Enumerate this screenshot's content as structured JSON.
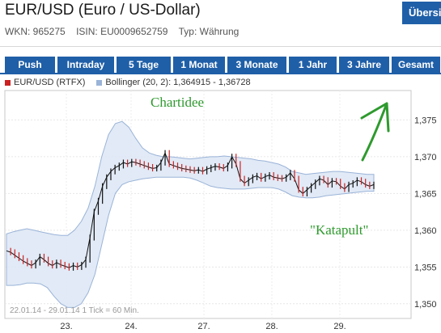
{
  "header": {
    "title": "EUR/USD (Euro / US-Dollar)",
    "overview_button": "Übersicht",
    "wkn": "WKN: 965275",
    "isin": "ISIN: EU0009652759",
    "type": "Typ: Währung"
  },
  "tabs": [
    {
      "label": "Push",
      "active": false
    },
    {
      "label": "Intraday",
      "active": false
    },
    {
      "label": "5 Tage",
      "active": true
    },
    {
      "label": "1 Monat",
      "active": false
    },
    {
      "label": "3 Monate",
      "active": false
    },
    {
      "label": "1 Jahr",
      "active": false
    },
    {
      "label": "3 Jahre",
      "active": false
    },
    {
      "label": "Gesamt",
      "active": false
    }
  ],
  "legend": {
    "series": "EUR/USD (RTFX)",
    "series_color": "#cc2222",
    "bollinger": "Bollinger (20, 2): 1,364915 - 1,36728",
    "bollinger_color": "#9ab3d8"
  },
  "chart_data": {
    "type": "line",
    "title": "",
    "x_ticks": [
      "23.",
      "24.",
      "27.",
      "28.",
      "29."
    ],
    "y_ticks": [
      "1,375",
      "1,370",
      "1,365",
      "1,360",
      "1,355",
      "1,350"
    ],
    "ylim": [
      1.348,
      1.379
    ],
    "grid": true,
    "footnote": "22.01.14 - 29.01.14    1 Tick = 60 Min.",
    "annotations": [
      "Chartidee",
      "\"Katapult\""
    ],
    "annotation_color": "#2e9a2e",
    "price": [
      1.3572,
      1.357,
      1.3566,
      1.3562,
      1.3558,
      1.3555,
      1.3552,
      1.3556,
      1.3564,
      1.356,
      1.3555,
      1.3552,
      1.3556,
      1.3553,
      1.3551,
      1.3549,
      1.3552,
      1.355,
      1.3553,
      1.356,
      1.359,
      1.3625,
      1.364,
      1.366,
      1.3672,
      1.368,
      1.3685,
      1.3688,
      1.3692,
      1.369,
      1.3693,
      1.3692,
      1.369,
      1.3688,
      1.3686,
      1.3684,
      1.3685,
      1.3692,
      1.3705,
      1.369,
      1.3688,
      1.3686,
      1.3684,
      1.3683,
      1.3682,
      1.3681,
      1.3682,
      1.368,
      1.3683,
      1.3685,
      1.3687,
      1.3686,
      1.3684,
      1.3688,
      1.37,
      1.369,
      1.367,
      1.3664,
      1.3668,
      1.3672,
      1.3674,
      1.367,
      1.3673,
      1.3675,
      1.3672,
      1.3671,
      1.367,
      1.3672,
      1.3678,
      1.367,
      1.3655,
      1.365,
      1.3655,
      1.366,
      1.3665,
      1.367,
      1.3668,
      1.3662,
      1.3667,
      1.3666,
      1.366,
      1.3656,
      1.3662,
      1.3664,
      1.3668,
      1.3666,
      1.3662,
      1.366,
      1.3662
    ],
    "bollinger_upper": [
      1.3595,
      1.3598,
      1.36,
      1.3602,
      1.36,
      1.3598,
      1.3596,
      1.3594,
      1.3593,
      1.3593,
      1.36,
      1.3612,
      1.363,
      1.366,
      1.37,
      1.373,
      1.3745,
      1.3748,
      1.374,
      1.3725,
      1.3712,
      1.3705,
      1.3702,
      1.37,
      1.37,
      1.3699,
      1.3698,
      1.3697,
      1.3698,
      1.3699,
      1.37,
      1.37,
      1.3701,
      1.37,
      1.3699,
      1.3698,
      1.3697,
      1.3695,
      1.3694,
      1.3692,
      1.369,
      1.3686,
      1.368,
      1.3678,
      1.3676,
      1.3677,
      1.3678,
      1.3679,
      1.368,
      1.368,
      1.3679,
      1.3678,
      1.3677,
      1.3676,
      1.3676
    ],
    "bollinger_lower": [
      1.3525,
      1.3525,
      1.3526,
      1.3528,
      1.3528,
      1.3527,
      1.3522,
      1.351,
      1.35,
      1.3495,
      1.3495,
      1.35,
      1.3515,
      1.354,
      1.358,
      1.362,
      1.365,
      1.3662,
      1.3666,
      1.3668,
      1.367,
      1.3671,
      1.3672,
      1.3672,
      1.3672,
      1.3672,
      1.3672,
      1.3671,
      1.3668,
      1.3664,
      1.366,
      1.3658,
      1.3657,
      1.3656,
      1.3656,
      1.3656,
      1.3657,
      1.3658,
      1.3658,
      1.3658,
      1.3656,
      1.3652,
      1.3647,
      1.3645,
      1.3644,
      1.3644,
      1.3645,
      1.3647,
      1.3648,
      1.3649,
      1.365,
      1.3651,
      1.3652,
      1.3653,
      1.3653
    ]
  }
}
